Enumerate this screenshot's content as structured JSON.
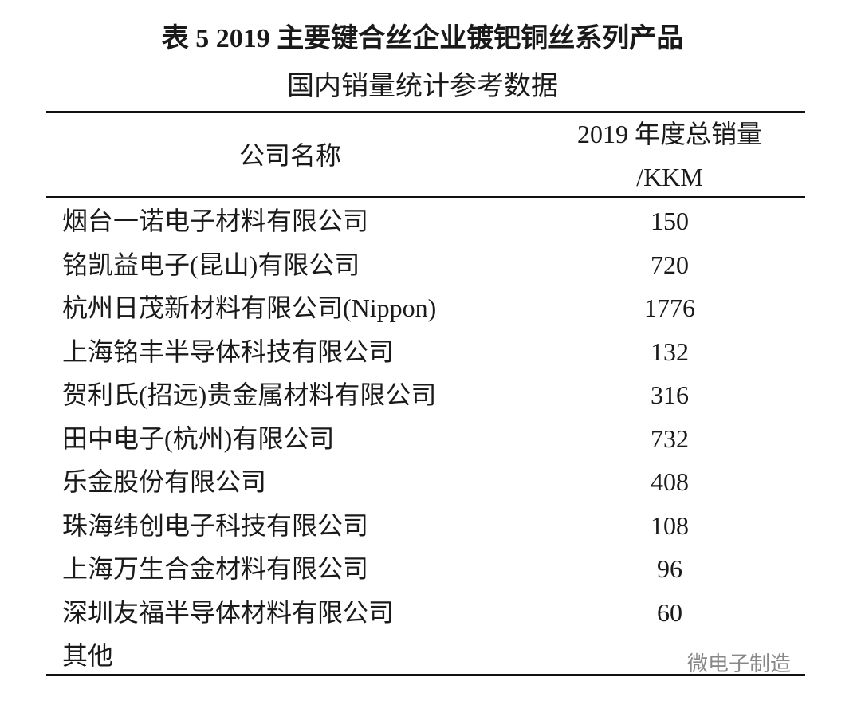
{
  "header": {
    "title": "表 5  2019 主要键合丝企业镀钯铜丝系列产品",
    "subtitle": "国内销量统计参考数据"
  },
  "table": {
    "header": [
      "公司名称",
      "2019 年度总销量",
      "/KKM"
    ],
    "rows": [
      [
        "烟台一诺电子材料有限公司",
        "150"
      ],
      [
        "铭凯益电子(昆山)有限公司",
        "720"
      ],
      [
        "杭州日茂新材料有限公司(Nippon)",
        "1776"
      ],
      [
        "上海铭丰半导体科技有限公司",
        "132"
      ],
      [
        "贺利氏(招远)贵金属材料有限公司",
        "316"
      ],
      [
        "田中电子(杭州)有限公司",
        "732"
      ],
      [
        "乐金股份有限公司",
        "408"
      ],
      [
        "珠海纬创电子科技有限公司",
        "108"
      ],
      [
        "上海万生合金材料有限公司",
        "96"
      ],
      [
        "深圳友福半导体材料有限公司",
        "60"
      ],
      [
        "其他"
      ]
    ]
  },
  "watermark": "微电子制造"
}
